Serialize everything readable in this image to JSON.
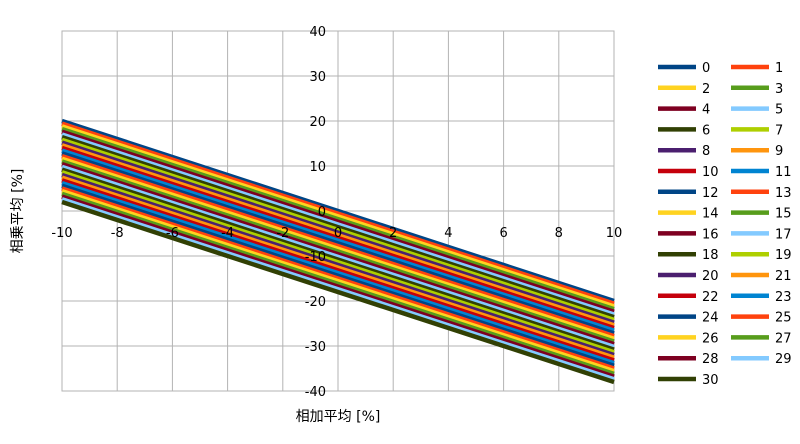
{
  "chart_data": {
    "type": "line",
    "xlabel": "相加平均 [%]",
    "ylabel": "相乗平均 [%]",
    "xlim": [
      -10,
      10
    ],
    "ylim": [
      -40,
      40
    ],
    "xticks": [
      -10,
      -8,
      -6,
      -4,
      -2,
      0,
      2,
      4,
      6,
      8,
      10
    ],
    "yticks": [
      40,
      30,
      20,
      10,
      0,
      -10,
      -20,
      -30,
      -40
    ],
    "grid": true,
    "legend_position": "right",
    "x": [
      -10,
      10
    ],
    "series": [
      {
        "name": "0",
        "color": "#004586",
        "values": [
          20.0,
          -20.0
        ]
      },
      {
        "name": "1",
        "color": "#ff420e",
        "values": [
          19.4,
          -20.6
        ]
      },
      {
        "name": "2",
        "color": "#ffd320",
        "values": [
          18.8,
          -21.2
        ]
      },
      {
        "name": "3",
        "color": "#579d1c",
        "values": [
          18.2,
          -21.8
        ]
      },
      {
        "name": "4",
        "color": "#7e0021",
        "values": [
          17.6,
          -22.4
        ]
      },
      {
        "name": "5",
        "color": "#83caff",
        "values": [
          17.0,
          -23.0
        ]
      },
      {
        "name": "6",
        "color": "#314004",
        "values": [
          16.4,
          -23.6
        ]
      },
      {
        "name": "7",
        "color": "#aecf00",
        "values": [
          15.8,
          -24.2
        ]
      },
      {
        "name": "8",
        "color": "#4b1f6f",
        "values": [
          15.2,
          -24.8
        ]
      },
      {
        "name": "9",
        "color": "#ff950e",
        "values": [
          14.6,
          -25.4
        ]
      },
      {
        "name": "10",
        "color": "#c5000b",
        "values": [
          14.0,
          -26.0
        ]
      },
      {
        "name": "11",
        "color": "#0084d1",
        "values": [
          13.4,
          -26.6
        ]
      },
      {
        "name": "12",
        "color": "#004586",
        "values": [
          12.8,
          -27.2
        ]
      },
      {
        "name": "13",
        "color": "#ff420e",
        "values": [
          12.2,
          -27.8
        ]
      },
      {
        "name": "14",
        "color": "#ffd320",
        "values": [
          11.6,
          -28.4
        ]
      },
      {
        "name": "15",
        "color": "#579d1c",
        "values": [
          11.0,
          -29.0
        ]
      },
      {
        "name": "16",
        "color": "#7e0021",
        "values": [
          10.4,
          -29.6
        ]
      },
      {
        "name": "17",
        "color": "#83caff",
        "values": [
          9.8,
          -30.2
        ]
      },
      {
        "name": "18",
        "color": "#314004",
        "values": [
          9.2,
          -30.8
        ]
      },
      {
        "name": "19",
        "color": "#aecf00",
        "values": [
          8.6,
          -31.4
        ]
      },
      {
        "name": "20",
        "color": "#4b1f6f",
        "values": [
          8.0,
          -32.0
        ]
      },
      {
        "name": "21",
        "color": "#ff950e",
        "values": [
          7.4,
          -32.6
        ]
      },
      {
        "name": "22",
        "color": "#c5000b",
        "values": [
          6.8,
          -33.2
        ]
      },
      {
        "name": "23",
        "color": "#0084d1",
        "values": [
          6.2,
          -33.8
        ]
      },
      {
        "name": "24",
        "color": "#004586",
        "values": [
          5.6,
          -34.4
        ]
      },
      {
        "name": "25",
        "color": "#ff420e",
        "values": [
          5.0,
          -35.0
        ]
      },
      {
        "name": "26",
        "color": "#ffd320",
        "values": [
          4.4,
          -35.6
        ]
      },
      {
        "name": "27",
        "color": "#579d1c",
        "values": [
          3.8,
          -36.2
        ]
      },
      {
        "name": "28",
        "color": "#7e0021",
        "values": [
          3.2,
          -36.8
        ]
      },
      {
        "name": "29",
        "color": "#83caff",
        "values": [
          2.6,
          -37.4
        ]
      },
      {
        "name": "30",
        "color": "#314004",
        "values": [
          2.0,
          -38.0
        ]
      }
    ]
  }
}
